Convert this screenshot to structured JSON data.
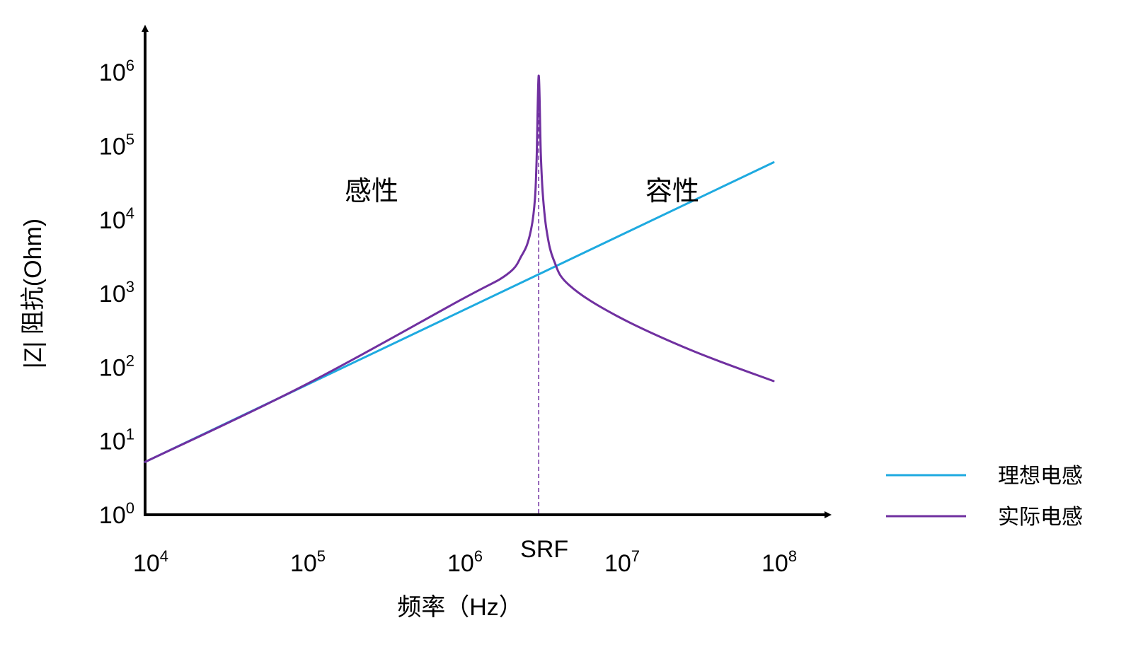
{
  "chart_data": {
    "type": "line",
    "xlabel": "频率（Hz）",
    "ylabel": "|Z| 阻抗(Ohm)",
    "x_scale": "log",
    "y_scale": "log",
    "xlim": [
      10000,
      100000000
    ],
    "ylim": [
      1,
      1000000
    ],
    "x_ticks": [
      {
        "value": 10000,
        "base": "10",
        "exp": "4"
      },
      {
        "value": 100000,
        "base": "10",
        "exp": "5"
      },
      {
        "value": 1000000,
        "base": "10",
        "exp": "6"
      },
      {
        "value": 10000000,
        "base": "10",
        "exp": "7"
      },
      {
        "value": 100000000,
        "base": "10",
        "exp": "8"
      }
    ],
    "y_ticks": [
      {
        "value": 1,
        "base": "10",
        "exp": "0"
      },
      {
        "value": 10,
        "base": "10",
        "exp": "1"
      },
      {
        "value": 100,
        "base": "10",
        "exp": "2"
      },
      {
        "value": 1000,
        "base": "10",
        "exp": "3"
      },
      {
        "value": 10000,
        "base": "10",
        "exp": "4"
      },
      {
        "value": 100000,
        "base": "10",
        "exp": "5"
      },
      {
        "value": 1000000,
        "base": "10",
        "exp": "6"
      }
    ],
    "annotations": {
      "inductive": "感性",
      "capacitive": "容性",
      "srf": "SRF",
      "srf_x": 3200000
    },
    "series": [
      {
        "name": "理想电感",
        "color": "#1EAAE0",
        "x": [
          10000,
          100000000
        ],
        "y": [
          5.2,
          60000
        ]
      },
      {
        "name": "实际电感",
        "color": "#7030A0",
        "x": [
          10000,
          100000,
          1000000,
          2000000,
          2500000,
          2800000,
          3000000,
          3100000,
          3200000,
          3300000,
          3400000,
          3600000,
          4000000,
          5000000,
          10000000,
          30000000,
          100000000
        ],
        "y": [
          5.2,
          55,
          800,
          1800,
          3300,
          6000,
          15000,
          60000,
          900000,
          80000,
          22000,
          7000,
          2800,
          1300,
          500,
          170,
          65
        ]
      }
    ],
    "legend_position": "bottom-right",
    "grid": false
  }
}
